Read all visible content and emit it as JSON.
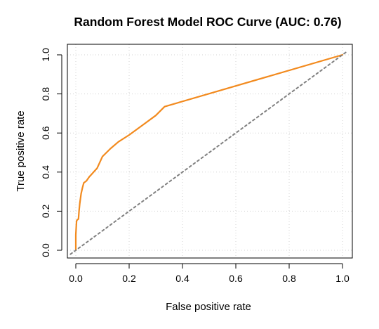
{
  "chart_data": {
    "type": "line",
    "title": "Random Forest Model ROC Curve (AUC: 0.76)",
    "xlabel": "False positive rate",
    "ylabel": "True positive rate",
    "xlim": [
      0,
      1
    ],
    "ylim": [
      0,
      1
    ],
    "x_ticks": [
      0.0,
      0.2,
      0.4,
      0.6,
      0.8,
      1.0
    ],
    "y_ticks": [
      0.0,
      0.2,
      0.4,
      0.6,
      0.8,
      1.0
    ],
    "x_tick_labels": [
      "0.0",
      "0.2",
      "0.4",
      "0.6",
      "0.8",
      "1.0"
    ],
    "y_tick_labels": [
      "0.0",
      "0.2",
      "0.4",
      "0.6",
      "0.8",
      "1.0"
    ],
    "grid": true,
    "series": [
      {
        "color": "#f28a1e",
        "x": [
          0.0,
          0.0,
          0.003,
          0.005,
          0.01,
          0.012,
          0.015,
          0.02,
          0.025,
          0.03,
          0.04,
          0.05,
          0.06,
          0.07,
          0.08,
          0.09,
          0.1,
          0.13,
          0.16,
          0.2,
          0.25,
          0.3,
          0.333,
          1.0
        ],
        "y": [
          0.0,
          0.08,
          0.15,
          0.155,
          0.16,
          0.2,
          0.24,
          0.29,
          0.32,
          0.345,
          0.355,
          0.375,
          0.39,
          0.405,
          0.42,
          0.45,
          0.48,
          0.52,
          0.555,
          0.59,
          0.64,
          0.69,
          0.735,
          1.0
        ]
      },
      {
        "color": "#808080",
        "dashed": true,
        "x": [
          -0.02,
          1.02
        ],
        "y": [
          -0.02,
          1.02
        ]
      }
    ]
  }
}
